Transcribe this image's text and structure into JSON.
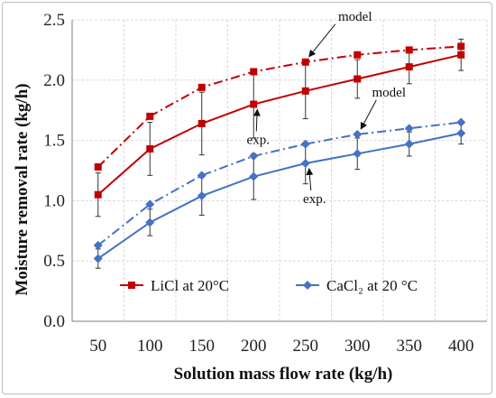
{
  "chart_data": {
    "type": "line",
    "xlabel": "Solution mass flow rate (kg/h)",
    "ylabel": "Moisture removal rate (kg/h)",
    "categories": [
      "50",
      "100",
      "150",
      "200",
      "250",
      "300",
      "350",
      "400"
    ],
    "ylim": [
      0,
      2.5
    ],
    "yticks": [
      "0.0",
      "0.5",
      "1.0",
      "1.5",
      "2.0",
      "2.5"
    ],
    "grid": true,
    "legend_position": "bottom-left",
    "series": [
      {
        "name": "LiCl at 20°C",
        "kind": "exp.",
        "style": "solid",
        "color": "#c00000",
        "marker": "square",
        "in_legend": true,
        "values": [
          1.05,
          1.43,
          1.64,
          1.8,
          1.91,
          2.01,
          2.11,
          2.21
        ],
        "error": [
          0.18,
          0.22,
          0.26,
          0.28,
          0.23,
          0.16,
          0.14,
          0.13
        ]
      },
      {
        "name": "",
        "kind": "model",
        "style": "dashdot",
        "color": "#c00000",
        "marker": "square",
        "in_legend": false,
        "values": [
          1.28,
          1.7,
          1.94,
          2.07,
          2.15,
          2.21,
          2.25,
          2.28
        ],
        "error": []
      },
      {
        "name": "CaCl₂ at 20 °C",
        "kind": "exp.",
        "style": "solid",
        "color": "#4472c4",
        "marker": "diamond",
        "in_legend": true,
        "values": [
          0.52,
          0.82,
          1.04,
          1.2,
          1.31,
          1.39,
          1.47,
          1.56
        ],
        "error": [
          0.08,
          0.11,
          0.16,
          0.19,
          0.17,
          0.13,
          0.1,
          0.09
        ]
      },
      {
        "name": "",
        "kind": "model",
        "style": "dashdot",
        "color": "#4472c4",
        "marker": "diamond",
        "in_legend": false,
        "values": [
          0.63,
          0.97,
          1.21,
          1.37,
          1.47,
          1.55,
          1.6,
          1.65
        ],
        "error": []
      }
    ],
    "annotations": [
      {
        "text": "model",
        "target_series": 1,
        "target_index": 4
      },
      {
        "text": "exp.",
        "target_series": 0,
        "target_index": 3
      },
      {
        "text": "model",
        "target_series": 3,
        "target_index": 5
      },
      {
        "text": "exp.",
        "target_series": 2,
        "target_index": 4
      }
    ]
  }
}
